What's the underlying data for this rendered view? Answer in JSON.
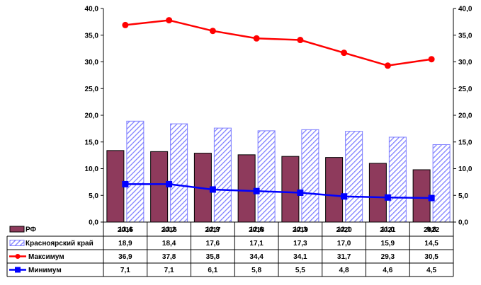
{
  "chart_data": {
    "type": "bar",
    "categories": [
      "2015",
      "2016",
      "2017",
      "2018",
      "2019",
      "2020",
      "2021",
      "2022"
    ],
    "ylim": [
      0,
      40
    ],
    "yticks": [
      "0,0",
      "5,0",
      "10,0",
      "15,0",
      "20,0",
      "25,0",
      "30,0",
      "35,0",
      "40,0"
    ],
    "series": [
      {
        "name": "РФ",
        "kind": "bar",
        "color": "#8e3a5c",
        "values": [
          13.4,
          13.2,
          12.9,
          12.6,
          12.3,
          12.1,
          11.0,
          9.8
        ],
        "labels": [
          "13,4",
          "13,2",
          "12,9",
          "12,6",
          "12,3",
          "12,1",
          "11,0",
          "9,8"
        ]
      },
      {
        "name": "Красноярский край",
        "kind": "bar",
        "color": "#7f7fff",
        "values": [
          18.9,
          18.4,
          17.6,
          17.1,
          17.3,
          17.0,
          15.9,
          14.5
        ],
        "labels": [
          "18,9",
          "18,4",
          "17,6",
          "17,1",
          "17,3",
          "17,0",
          "15,9",
          "14,5"
        ]
      },
      {
        "name": "Максимум",
        "kind": "line",
        "color": "#ff0000",
        "values": [
          36.9,
          37.8,
          35.8,
          34.4,
          34.1,
          31.7,
          29.3,
          30.5
        ],
        "labels": [
          "36,9",
          "37,8",
          "35,8",
          "34,4",
          "34,1",
          "31,7",
          "29,3",
          "30,5"
        ]
      },
      {
        "name": "Минимум",
        "kind": "line",
        "color": "#0000ff",
        "values": [
          7.1,
          7.1,
          6.1,
          5.8,
          5.5,
          4.8,
          4.6,
          4.5
        ],
        "labels": [
          "7,1",
          "7,1",
          "6,1",
          "5,8",
          "5,5",
          "4,8",
          "4,6",
          "4,5"
        ]
      }
    ],
    "legend": "table-below",
    "grid": false
  }
}
